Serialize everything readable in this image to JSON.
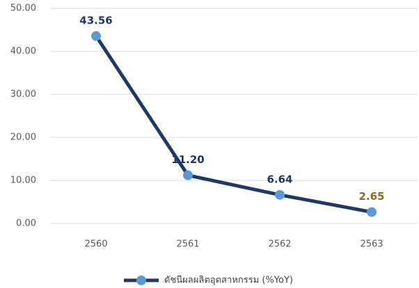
{
  "chart_data": {
    "type": "line",
    "categories": [
      "2560",
      "2561",
      "2562",
      "2563"
    ],
    "series": [
      {
        "name": "ดัชนีผลผลิตอุตสาหกรรม (%YoY)",
        "color": "#1f3864",
        "marker_color": "#5b9bd5",
        "values": [
          43.56,
          11.2,
          6.64,
          2.65
        ],
        "value_labels": [
          "43.56",
          "11.20",
          "6.64",
          "2.65"
        ],
        "value_label_colors": [
          "#1f3864",
          "#1f3864",
          "#1f3864",
          "#8a6a1a"
        ]
      }
    ],
    "ylim": [
      0,
      50
    ],
    "yticks": [
      {
        "value": 0,
        "label": "0.00"
      },
      {
        "value": 10,
        "label": "10.00"
      },
      {
        "value": 20,
        "label": "20.00"
      },
      {
        "value": 30,
        "label": "30.00"
      },
      {
        "value": 40,
        "label": "40.00"
      },
      {
        "value": 50,
        "label": "50.00"
      }
    ],
    "grid": true,
    "legend": "bottom"
  }
}
